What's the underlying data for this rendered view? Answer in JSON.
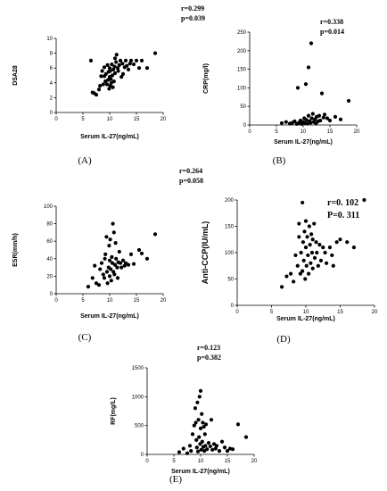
{
  "chart_data": [
    {
      "panel": "(A)",
      "type": "scatter",
      "xlabel": "Serum IL-27(ng/mL)",
      "ylabel": "DSA28",
      "stats": [
        "r=0.299",
        "p=0.039"
      ],
      "xlim": [
        0,
        20
      ],
      "ylim": [
        0,
        10
      ],
      "xticks": [
        "0",
        "5",
        "10",
        "15",
        "20"
      ],
      "yticks": [
        "0",
        "2",
        "4",
        "6",
        "8",
        "10"
      ],
      "points": [
        [
          6.5,
          7.0
        ],
        [
          6.8,
          2.7
        ],
        [
          7.1,
          2.6
        ],
        [
          7.5,
          2.4
        ],
        [
          8.0,
          3.1
        ],
        [
          8.2,
          3.6
        ],
        [
          8.4,
          4.9
        ],
        [
          8.6,
          5.6
        ],
        [
          8.8,
          3.8
        ],
        [
          9.0,
          4.9
        ],
        [
          9.0,
          6.1
        ],
        [
          9.2,
          4.2
        ],
        [
          9.3,
          5.2
        ],
        [
          9.5,
          3.8
        ],
        [
          9.6,
          6.4
        ],
        [
          9.7,
          4.4
        ],
        [
          9.8,
          5.5
        ],
        [
          9.9,
          3.2
        ],
        [
          10.0,
          4.8
        ],
        [
          10.0,
          6.0
        ],
        [
          10.1,
          5.6
        ],
        [
          10.1,
          3.6
        ],
        [
          10.2,
          4.5
        ],
        [
          10.3,
          4.0
        ],
        [
          10.4,
          6.5
        ],
        [
          10.5,
          5.0
        ],
        [
          10.6,
          3.4
        ],
        [
          10.7,
          5.8
        ],
        [
          10.8,
          4.2
        ],
        [
          10.9,
          6.2
        ],
        [
          11.0,
          5.3
        ],
        [
          11.0,
          7.3
        ],
        [
          11.2,
          6.8
        ],
        [
          11.3,
          7.8
        ],
        [
          11.5,
          6.0
        ],
        [
          11.6,
          5.6
        ],
        [
          11.8,
          6.4
        ],
        [
          12.0,
          7.0
        ],
        [
          12.2,
          4.8
        ],
        [
          12.4,
          6.6
        ],
        [
          12.5,
          5.2
        ],
        [
          12.8,
          6.1
        ],
        [
          13.0,
          7.0
        ],
        [
          13.2,
          6.3
        ],
        [
          13.5,
          5.8
        ],
        [
          13.8,
          6.6
        ],
        [
          14.0,
          7.0
        ],
        [
          14.5,
          6.5
        ],
        [
          15.0,
          7.0
        ],
        [
          15.5,
          6.0
        ],
        [
          16.0,
          7.0
        ],
        [
          17.0,
          6.0
        ],
        [
          18.5,
          8.0
        ]
      ]
    },
    {
      "panel": "(B)",
      "type": "scatter",
      "xlabel": "Serum IL-27(ng/mL)",
      "ylabel": "CRP(mg/l)",
      "stats": [
        "r=0.338",
        "p=0.014"
      ],
      "xlim": [
        0,
        20
      ],
      "ylim": [
        0,
        250
      ],
      "xticks": [
        "0",
        "5",
        "10",
        "15",
        "20"
      ],
      "yticks": [
        "0",
        "50",
        "100",
        "150",
        "200",
        "250"
      ],
      "points": [
        [
          6.0,
          5
        ],
        [
          6.8,
          8
        ],
        [
          7.5,
          4
        ],
        [
          8.0,
          6
        ],
        [
          8.4,
          10
        ],
        [
          8.8,
          3
        ],
        [
          9.0,
          100
        ],
        [
          9.2,
          6
        ],
        [
          9.5,
          12
        ],
        [
          9.7,
          3
        ],
        [
          10.0,
          8
        ],
        [
          10.2,
          18
        ],
        [
          10.3,
          5
        ],
        [
          10.5,
          110
        ],
        [
          10.6,
          14
        ],
        [
          10.8,
          4
        ],
        [
          11.0,
          25
        ],
        [
          11.0,
          155
        ],
        [
          11.2,
          10
        ],
        [
          11.4,
          6
        ],
        [
          11.5,
          220
        ],
        [
          11.6,
          18
        ],
        [
          11.8,
          30
        ],
        [
          12.0,
          8
        ],
        [
          12.2,
          15
        ],
        [
          12.4,
          4
        ],
        [
          12.5,
          22
        ],
        [
          12.8,
          10
        ],
        [
          13.0,
          25
        ],
        [
          13.2,
          12
        ],
        [
          13.5,
          85
        ],
        [
          13.8,
          20
        ],
        [
          14.0,
          28
        ],
        [
          14.5,
          18
        ],
        [
          15.0,
          12
        ],
        [
          16.0,
          22
        ],
        [
          17.0,
          15
        ],
        [
          18.5,
          65
        ]
      ]
    },
    {
      "panel": "(C)",
      "type": "scatter",
      "xlabel": "Serum IL-27(ng/mL)",
      "ylabel": "ESR(mm/h)",
      "stats": [
        "r=0.264",
        "p=0.058"
      ],
      "xlim": [
        0,
        20
      ],
      "ylim": [
        0,
        100
      ],
      "xticks": [
        "0",
        "5",
        "10",
        "15",
        "20"
      ],
      "yticks": [
        "0",
        "20",
        "40",
        "60",
        "80",
        "100"
      ],
      "points": [
        [
          6.0,
          8
        ],
        [
          6.8,
          18
        ],
        [
          7.2,
          32
        ],
        [
          7.5,
          12
        ],
        [
          8.0,
          10
        ],
        [
          8.2,
          28
        ],
        [
          8.5,
          35
        ],
        [
          8.8,
          22
        ],
        [
          9.0,
          18
        ],
        [
          9.1,
          40
        ],
        [
          9.2,
          45
        ],
        [
          9.4,
          65
        ],
        [
          9.5,
          25
        ],
        [
          9.6,
          12
        ],
        [
          9.8,
          30
        ],
        [
          9.9,
          55
        ],
        [
          10.0,
          20
        ],
        [
          10.0,
          38
        ],
        [
          10.1,
          62
        ],
        [
          10.2,
          28
        ],
        [
          10.3,
          15
        ],
        [
          10.4,
          42
        ],
        [
          10.5,
          35
        ],
        [
          10.6,
          80
        ],
        [
          10.7,
          25
        ],
        [
          10.8,
          70
        ],
        [
          10.9,
          22
        ],
        [
          11.0,
          33
        ],
        [
          11.1,
          58
        ],
        [
          11.2,
          40
        ],
        [
          11.4,
          30
        ],
        [
          11.5,
          18
        ],
        [
          11.6,
          36
        ],
        [
          11.8,
          48
        ],
        [
          12.0,
          35
        ],
        [
          12.2,
          30
        ],
        [
          12.5,
          38
        ],
        [
          12.8,
          32
        ],
        [
          13.0,
          35
        ],
        [
          13.5,
          33
        ],
        [
          14.0,
          45
        ],
        [
          14.5,
          34
        ],
        [
          15.5,
          50
        ],
        [
          16.0,
          46
        ],
        [
          17.0,
          40
        ],
        [
          18.5,
          68
        ]
      ]
    },
    {
      "panel": "(D)",
      "type": "scatter",
      "xlabel": "Serum IL-27(ng/mL)",
      "ylabel": "Anti-CCP(IU/mL)",
      "stats": [
        "r=0. 102",
        "P=0. 311"
      ],
      "xlim": [
        0,
        20
      ],
      "ylim": [
        0,
        200
      ],
      "xticks": [
        "0",
        "5",
        "10",
        "15",
        "20"
      ],
      "yticks": [
        "0",
        "50",
        "100",
        "150",
        "200"
      ],
      "points": [
        [
          6.5,
          35
        ],
        [
          7.2,
          55
        ],
        [
          7.8,
          60
        ],
        [
          8.2,
          45
        ],
        [
          8.5,
          95
        ],
        [
          8.8,
          75
        ],
        [
          9.0,
          130
        ],
        [
          9.0,
          155
        ],
        [
          9.2,
          60
        ],
        [
          9.3,
          100
        ],
        [
          9.5,
          65
        ],
        [
          9.5,
          195
        ],
        [
          9.6,
          120
        ],
        [
          9.7,
          85
        ],
        [
          9.8,
          140
        ],
        [
          9.9,
          50
        ],
        [
          10.0,
          110
        ],
        [
          10.0,
          160
        ],
        [
          10.1,
          75
        ],
        [
          10.2,
          130
        ],
        [
          10.3,
          95
        ],
        [
          10.4,
          60
        ],
        [
          10.5,
          150
        ],
        [
          10.6,
          115
        ],
        [
          10.7,
          80
        ],
        [
          10.8,
          135
        ],
        [
          10.9,
          100
        ],
        [
          11.0,
          70
        ],
        [
          11.0,
          125
        ],
        [
          11.2,
          155
        ],
        [
          11.3,
          90
        ],
        [
          11.5,
          120
        ],
        [
          11.6,
          100
        ],
        [
          11.8,
          75
        ],
        [
          12.0,
          115
        ],
        [
          12.2,
          85
        ],
        [
          12.5,
          110
        ],
        [
          12.8,
          100
        ],
        [
          13.0,
          80
        ],
        [
          13.5,
          110
        ],
        [
          13.8,
          95
        ],
        [
          14.0,
          75
        ],
        [
          14.5,
          120
        ],
        [
          15.0,
          125
        ],
        [
          16.0,
          120
        ],
        [
          17.0,
          110
        ],
        [
          18.5,
          200
        ]
      ]
    },
    {
      "panel": "(E)",
      "type": "scatter",
      "xlabel": "Serum IL-27(ng/mL)",
      "ylabel": "RF(mg/L)",
      "stats": [
        "r=0.123",
        "p=0.382"
      ],
      "xlim": [
        0,
        20
      ],
      "ylim": [
        0,
        1500
      ],
      "xticks": [
        "0",
        "5",
        "10",
        "15",
        "20"
      ],
      "yticks": [
        "0",
        "500",
        "1000",
        "1500"
      ],
      "points": [
        [
          6.0,
          40
        ],
        [
          6.8,
          100
        ],
        [
          7.5,
          20
        ],
        [
          8.0,
          150
        ],
        [
          8.2,
          60
        ],
        [
          8.5,
          350
        ],
        [
          8.8,
          500
        ],
        [
          9.0,
          800
        ],
        [
          9.1,
          550
        ],
        [
          9.2,
          250
        ],
        [
          9.3,
          120
        ],
        [
          9.4,
          900
        ],
        [
          9.5,
          50
        ],
        [
          9.6,
          600
        ],
        [
          9.7,
          300
        ],
        [
          9.8,
          1000
        ],
        [
          9.9,
          180
        ],
        [
          10.0,
          1100
        ],
        [
          10.0,
          450
        ],
        [
          10.1,
          80
        ],
        [
          10.2,
          700
        ],
        [
          10.3,
          220
        ],
        [
          10.4,
          550
        ],
        [
          10.5,
          130
        ],
        [
          10.6,
          480
        ],
        [
          10.7,
          60
        ],
        [
          10.8,
          350
        ],
        [
          10.9,
          150
        ],
        [
          11.0,
          520
        ],
        [
          11.2,
          90
        ],
        [
          11.5,
          200
        ],
        [
          11.8,
          140
        ],
        [
          12.0,
          600
        ],
        [
          12.2,
          80
        ],
        [
          12.5,
          180
        ],
        [
          12.8,
          100
        ],
        [
          13.0,
          150
        ],
        [
          13.5,
          60
        ],
        [
          14.0,
          220
        ],
        [
          14.5,
          120
        ],
        [
          15.0,
          60
        ],
        [
          15.5,
          100
        ],
        [
          16.0,
          90
        ],
        [
          17.0,
          520
        ],
        [
          18.5,
          300
        ]
      ]
    }
  ]
}
